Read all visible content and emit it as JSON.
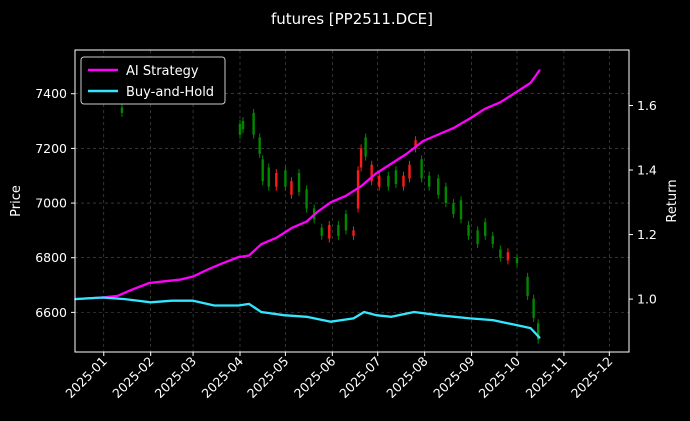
{
  "chart_data": {
    "type": "line",
    "title": "futures [PP2511.DCE]",
    "ylabel": "Price",
    "y2label": "Return",
    "xlim": [
      "2024-12-13",
      "2025-12-14"
    ],
    "ylim": [
      6455,
      7560
    ],
    "y2lim": [
      0.836,
      1.772
    ],
    "x_ticks": [
      "2025-01",
      "2025-02",
      "2025-03",
      "2025-04",
      "2025-05",
      "2025-06",
      "2025-07",
      "2025-08",
      "2025-09",
      "2025-10",
      "2025-11",
      "2025-12"
    ],
    "y_ticks": [
      6600,
      6800,
      7000,
      7200,
      7400
    ],
    "y2_ticks": [
      1.0,
      1.2,
      1.4,
      1.6
    ],
    "grid": true,
    "legend_position": "top-left",
    "colors": {
      "background": "#000000",
      "ai_strategy": "#ff00ff",
      "buy_and_hold": "#33e6ff",
      "candle_up": "#ff1a1a",
      "candle_down": "#008800",
      "grid": "#555555",
      "axis": "#ffffff"
    },
    "series": [
      {
        "name": "AI Strategy",
        "axis": "right",
        "points": [
          [
            "2024-12-13",
            1.0
          ],
          [
            "2024-12-31",
            1.005
          ],
          [
            "2025-01-10",
            1.01
          ],
          [
            "2025-01-20",
            1.03
          ],
          [
            "2025-01-31",
            1.05
          ],
          [
            "2025-02-10",
            1.055
          ],
          [
            "2025-02-20",
            1.06
          ],
          [
            "2025-03-01",
            1.07
          ],
          [
            "2025-03-10",
            1.09
          ],
          [
            "2025-03-20",
            1.11
          ],
          [
            "2025-03-31",
            1.13
          ],
          [
            "2025-04-07",
            1.135
          ],
          [
            "2025-04-15",
            1.17
          ],
          [
            "2025-04-25",
            1.19
          ],
          [
            "2025-05-05",
            1.22
          ],
          [
            "2025-05-15",
            1.24
          ],
          [
            "2025-05-22",
            1.27
          ],
          [
            "2025-05-31",
            1.3
          ],
          [
            "2025-06-10",
            1.32
          ],
          [
            "2025-06-20",
            1.35
          ],
          [
            "2025-06-30",
            1.39
          ],
          [
            "2025-07-10",
            1.42
          ],
          [
            "2025-07-20",
            1.45
          ],
          [
            "2025-07-31",
            1.49
          ],
          [
            "2025-08-10",
            1.51
          ],
          [
            "2025-08-20",
            1.53
          ],
          [
            "2025-08-31",
            1.56
          ],
          [
            "2025-09-10",
            1.59
          ],
          [
            "2025-09-20",
            1.61
          ],
          [
            "2025-09-30",
            1.64
          ],
          [
            "2025-10-10",
            1.67
          ],
          [
            "2025-10-16",
            1.71
          ]
        ]
      },
      {
        "name": "Buy-and-Hold",
        "axis": "right",
        "points": [
          [
            "2024-12-13",
            1.0
          ],
          [
            "2024-12-31",
            1.005
          ],
          [
            "2025-01-15",
            1.0
          ],
          [
            "2025-02-01",
            0.99
          ],
          [
            "2025-02-15",
            0.995
          ],
          [
            "2025-03-01",
            0.995
          ],
          [
            "2025-03-15",
            0.98
          ],
          [
            "2025-03-31",
            0.98
          ],
          [
            "2025-04-07",
            0.985
          ],
          [
            "2025-04-15",
            0.96
          ],
          [
            "2025-04-30",
            0.95
          ],
          [
            "2025-05-15",
            0.945
          ],
          [
            "2025-05-31",
            0.93
          ],
          [
            "2025-06-15",
            0.94
          ],
          [
            "2025-06-22",
            0.96
          ],
          [
            "2025-06-30",
            0.95
          ],
          [
            "2025-07-10",
            0.945
          ],
          [
            "2025-07-25",
            0.96
          ],
          [
            "2025-08-10",
            0.95
          ],
          [
            "2025-08-31",
            0.94
          ],
          [
            "2025-09-15",
            0.935
          ],
          [
            "2025-09-30",
            0.92
          ],
          [
            "2025-10-10",
            0.91
          ],
          [
            "2025-10-16",
            0.88
          ]
        ]
      }
    ],
    "candles": [
      [
        "2025-01-13",
        7350,
        7330
      ],
      [
        "2025-04-01",
        7290,
        7250
      ],
      [
        "2025-04-03",
        7300,
        7270
      ],
      [
        "2025-04-10",
        7330,
        7250
      ],
      [
        "2025-04-14",
        7240,
        7180
      ],
      [
        "2025-04-16",
        7160,
        7080
      ],
      [
        "2025-04-20",
        7130,
        7060
      ],
      [
        "2025-04-25",
        7060,
        7110
      ],
      [
        "2025-05-01",
        7120,
        7060
      ],
      [
        "2025-05-05",
        7030,
        7080
      ],
      [
        "2025-05-10",
        7110,
        7040
      ],
      [
        "2025-05-15",
        7050,
        6980
      ],
      [
        "2025-05-20",
        6980,
        6940
      ],
      [
        "2025-05-25",
        6910,
        6880
      ],
      [
        "2025-05-30",
        6870,
        6920
      ],
      [
        "2025-06-05",
        6920,
        6880
      ],
      [
        "2025-06-10",
        6960,
        6900
      ],
      [
        "2025-06-15",
        6880,
        6900
      ],
      [
        "2025-06-18",
        6980,
        7120
      ],
      [
        "2025-06-20",
        7130,
        7200
      ],
      [
        "2025-06-23",
        7240,
        7170
      ],
      [
        "2025-06-27",
        7080,
        7140
      ],
      [
        "2025-07-02",
        7060,
        7100
      ],
      [
        "2025-07-08",
        7100,
        7060
      ],
      [
        "2025-07-13",
        7120,
        7070
      ],
      [
        "2025-07-18",
        7060,
        7100
      ],
      [
        "2025-07-22",
        7090,
        7140
      ],
      [
        "2025-07-26",
        7200,
        7230
      ],
      [
        "2025-07-30",
        7160,
        7090
      ],
      [
        "2025-08-04",
        7100,
        7060
      ],
      [
        "2025-08-10",
        7090,
        7030
      ],
      [
        "2025-08-15",
        7060,
        7000
      ],
      [
        "2025-08-20",
        7000,
        6960
      ],
      [
        "2025-08-25",
        7010,
        6940
      ],
      [
        "2025-08-30",
        6920,
        6880
      ],
      [
        "2025-09-05",
        6900,
        6850
      ],
      [
        "2025-09-10",
        6930,
        6880
      ],
      [
        "2025-09-15",
        6880,
        6850
      ],
      [
        "2025-09-20",
        6830,
        6800
      ],
      [
        "2025-09-25",
        6790,
        6820
      ],
      [
        "2025-10-01",
        6800,
        6780
      ],
      [
        "2025-10-08",
        6730,
        6660
      ],
      [
        "2025-10-12",
        6650,
        6580
      ],
      [
        "2025-10-15",
        6560,
        6500
      ]
    ]
  }
}
